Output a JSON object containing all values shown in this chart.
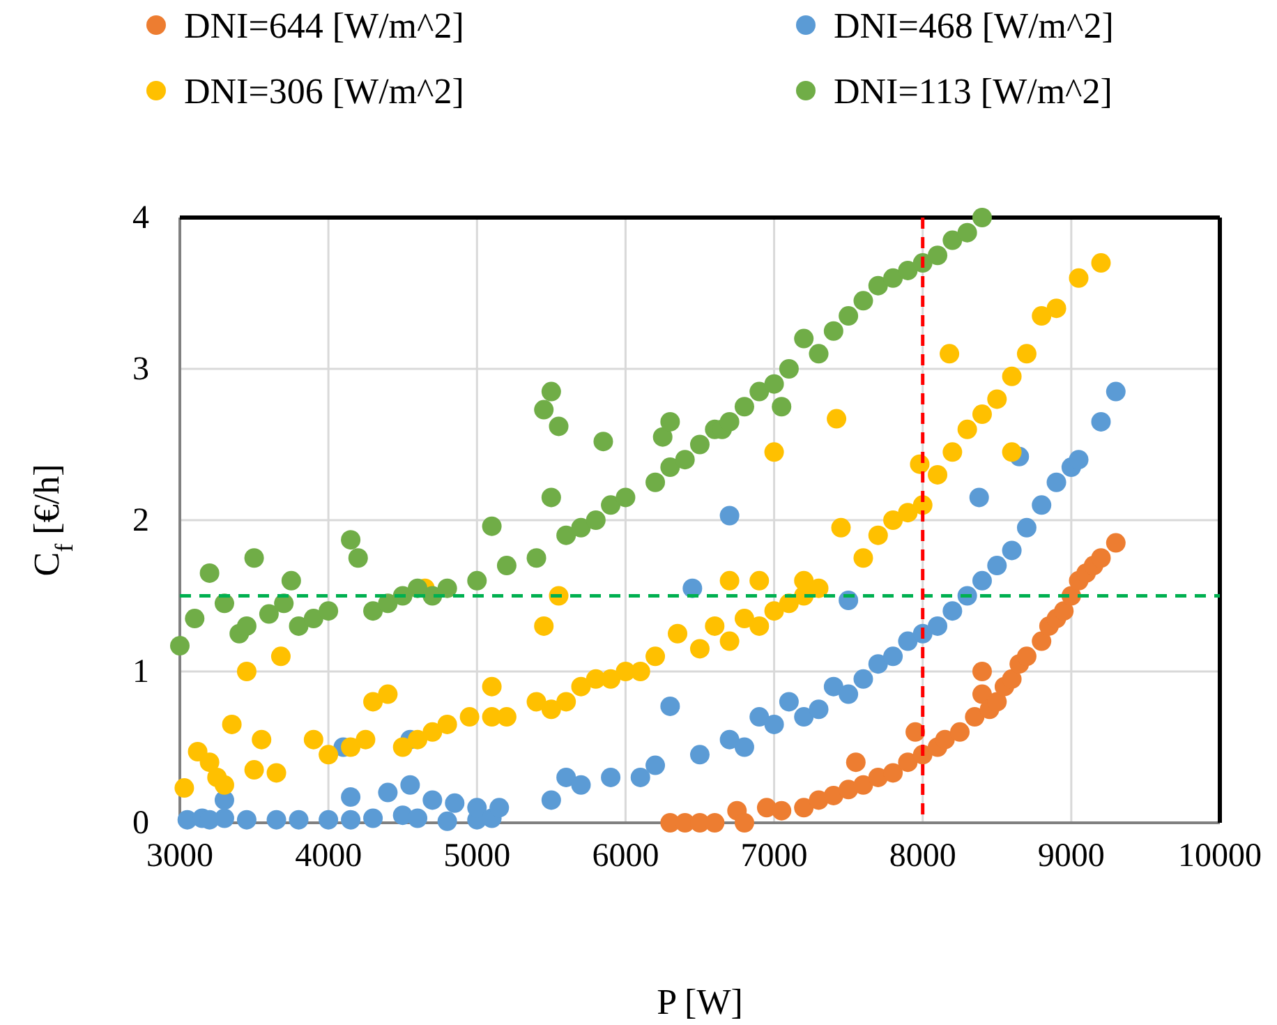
{
  "chart_data": {
    "type": "scatter",
    "xlabel": "P [W]",
    "ylabel": "C$_{f}$ [€/h]",
    "xlim": [
      3000,
      10000
    ],
    "xticks": [
      3000,
      4000,
      5000,
      6000,
      7000,
      8000,
      9000,
      10000
    ],
    "ylim": [
      0,
      4
    ],
    "yticks": [
      0,
      1,
      2,
      3,
      4
    ],
    "grid": true,
    "legend": "top",
    "marker": "circle",
    "ref_lines": [
      {
        "axis": "y",
        "value": 1.5,
        "color": "#00b050",
        "line_style": "dashed"
      },
      {
        "axis": "x",
        "value": 8000,
        "color": "#ff0000",
        "line_style": "dashed"
      }
    ],
    "series": [
      {
        "name": "DNI=644 [W/m^2]",
        "color": "#ed7d31",
        "x": [
          6300,
          6400,
          6500,
          6600,
          6750,
          6800,
          6950,
          7050,
          7200,
          7300,
          7400,
          7500,
          7550,
          7600,
          7700,
          7800,
          7900,
          7950,
          8000,
          8100,
          8150,
          8250,
          8350,
          8400,
          8400,
          8450,
          8500,
          8550,
          8600,
          8650,
          8700,
          8800,
          8850,
          8900,
          8950,
          9000,
          9050,
          9100,
          9150,
          9200,
          9300
        ],
        "values": [
          0,
          0,
          0,
          0,
          0.08,
          0,
          0.1,
          0.08,
          0.1,
          0.15,
          0.18,
          0.22,
          0.4,
          0.25,
          0.3,
          0.33,
          0.4,
          0.6,
          0.45,
          0.5,
          0.55,
          0.6,
          0.7,
          0.85,
          1.0,
          0.75,
          0.8,
          0.9,
          0.95,
          1.05,
          1.1,
          1.2,
          1.3,
          1.35,
          1.4,
          1.5,
          1.6,
          1.65,
          1.7,
          1.75,
          1.85
        ]
      },
      {
        "name": "DNI=468 [W/m^2]",
        "color": "#5b9bd5",
        "x": [
          3050,
          3150,
          3200,
          3300,
          3300,
          3450,
          3650,
          3800,
          4000,
          4100,
          4150,
          4150,
          4300,
          4400,
          4500,
          4550,
          4550,
          4600,
          4700,
          4800,
          4850,
          5000,
          5000,
          5100,
          5150,
          5500,
          5600,
          5700,
          5900,
          6100,
          6200,
          6300,
          6450,
          6500,
          6700,
          6700,
          6800,
          6900,
          7000,
          7100,
          7200,
          7300,
          7400,
          7500,
          7500,
          7600,
          7700,
          7800,
          7900,
          8000,
          8100,
          8200,
          8300,
          8380,
          8400,
          8500,
          8600,
          8650,
          8700,
          8800,
          8900,
          9000,
          9050,
          9200,
          9300
        ],
        "values": [
          0.02,
          0.03,
          0.02,
          0.03,
          0.15,
          0.02,
          0.02,
          0.02,
          0.02,
          0.5,
          0.02,
          0.17,
          0.03,
          0.2,
          0.05,
          0.25,
          0.55,
          0.03,
          0.15,
          0.01,
          0.13,
          0.02,
          0.1,
          0.03,
          0.1,
          0.15,
          0.3,
          0.25,
          0.3,
          0.3,
          0.38,
          0.77,
          1.55,
          0.45,
          0.55,
          2.03,
          0.5,
          0.7,
          0.65,
          0.8,
          0.7,
          0.75,
          0.9,
          0.85,
          1.47,
          0.95,
          1.05,
          1.1,
          1.2,
          1.25,
          1.3,
          1.4,
          1.5,
          2.15,
          1.6,
          1.7,
          1.8,
          2.42,
          1.95,
          2.1,
          2.25,
          2.35,
          2.4,
          2.65,
          2.85
        ]
      },
      {
        "name": "DNI=306 [W/m^2]",
        "color": "#ffc000",
        "x": [
          3030,
          3120,
          3200,
          3250,
          3300,
          3350,
          3450,
          3500,
          3550,
          3650,
          3680,
          3900,
          4000,
          4150,
          4250,
          4300,
          4400,
          4500,
          4600,
          4650,
          4700,
          4800,
          4950,
          5100,
          5100,
          5200,
          5400,
          5450,
          5500,
          5550,
          5600,
          5700,
          5800,
          5900,
          6000,
          6100,
          6200,
          6350,
          6500,
          6600,
          6700,
          6700,
          6800,
          6900,
          6900,
          7000,
          7000,
          7100,
          7200,
          7200,
          7300,
          7420,
          7450,
          7600,
          7700,
          7800,
          7900,
          7980,
          8000,
          8100,
          8180,
          8200,
          8300,
          8400,
          8500,
          8600,
          8600,
          8700,
          8800,
          8900,
          9050,
          9200
        ],
        "values": [
          0.23,
          0.47,
          0.4,
          0.3,
          0.25,
          0.65,
          1.0,
          0.35,
          0.55,
          0.33,
          1.1,
          0.55,
          0.45,
          0.5,
          0.55,
          0.8,
          0.85,
          0.5,
          0.55,
          1.55,
          0.6,
          0.65,
          0.7,
          0.7,
          0.9,
          0.7,
          0.8,
          1.3,
          0.75,
          1.5,
          0.8,
          0.9,
          0.95,
          0.95,
          1.0,
          1.0,
          1.1,
          1.25,
          1.15,
          1.3,
          1.2,
          1.6,
          1.35,
          1.3,
          1.6,
          1.4,
          2.45,
          1.45,
          1.5,
          1.6,
          1.55,
          2.67,
          1.95,
          1.75,
          1.9,
          2.0,
          2.05,
          2.37,
          2.1,
          2.3,
          3.1,
          2.45,
          2.6,
          2.7,
          2.8,
          2.95,
          2.45,
          3.1,
          3.35,
          3.4,
          3.6,
          3.7
        ]
      },
      {
        "name": "DNI=113 [W/m^2]",
        "color": "#70ad47",
        "x": [
          3000,
          3100,
          3200,
          3300,
          3400,
          3450,
          3500,
          3600,
          3700,
          3750,
          3800,
          3900,
          4000,
          4150,
          4200,
          4300,
          4400,
          4500,
          4600,
          4700,
          4800,
          5000,
          5100,
          5200,
          5400,
          5450,
          5500,
          5500,
          5550,
          5600,
          5700,
          5800,
          5850,
          5900,
          6000,
          6200,
          6250,
          6300,
          6300,
          6400,
          6500,
          6600,
          6650,
          6700,
          6800,
          6900,
          7000,
          7050,
          7100,
          7200,
          7300,
          7400,
          7500,
          7600,
          7700,
          7800,
          7900,
          8000,
          8100,
          8200,
          8300,
          8400
        ],
        "values": [
          1.17,
          1.35,
          1.65,
          1.45,
          1.25,
          1.3,
          1.75,
          1.38,
          1.45,
          1.6,
          1.3,
          1.35,
          1.4,
          1.87,
          1.75,
          1.4,
          1.45,
          1.5,
          1.55,
          1.5,
          1.55,
          1.6,
          1.96,
          1.7,
          1.75,
          2.73,
          2.85,
          2.15,
          2.62,
          1.9,
          1.95,
          2.0,
          2.52,
          2.1,
          2.15,
          2.25,
          2.55,
          2.35,
          2.65,
          2.4,
          2.5,
          2.6,
          2.6,
          2.65,
          2.75,
          2.85,
          2.9,
          2.75,
          3.0,
          3.2,
          3.1,
          3.25,
          3.35,
          3.45,
          3.55,
          3.6,
          3.65,
          3.7,
          3.75,
          3.85,
          3.9,
          4.0
        ]
      }
    ]
  }
}
